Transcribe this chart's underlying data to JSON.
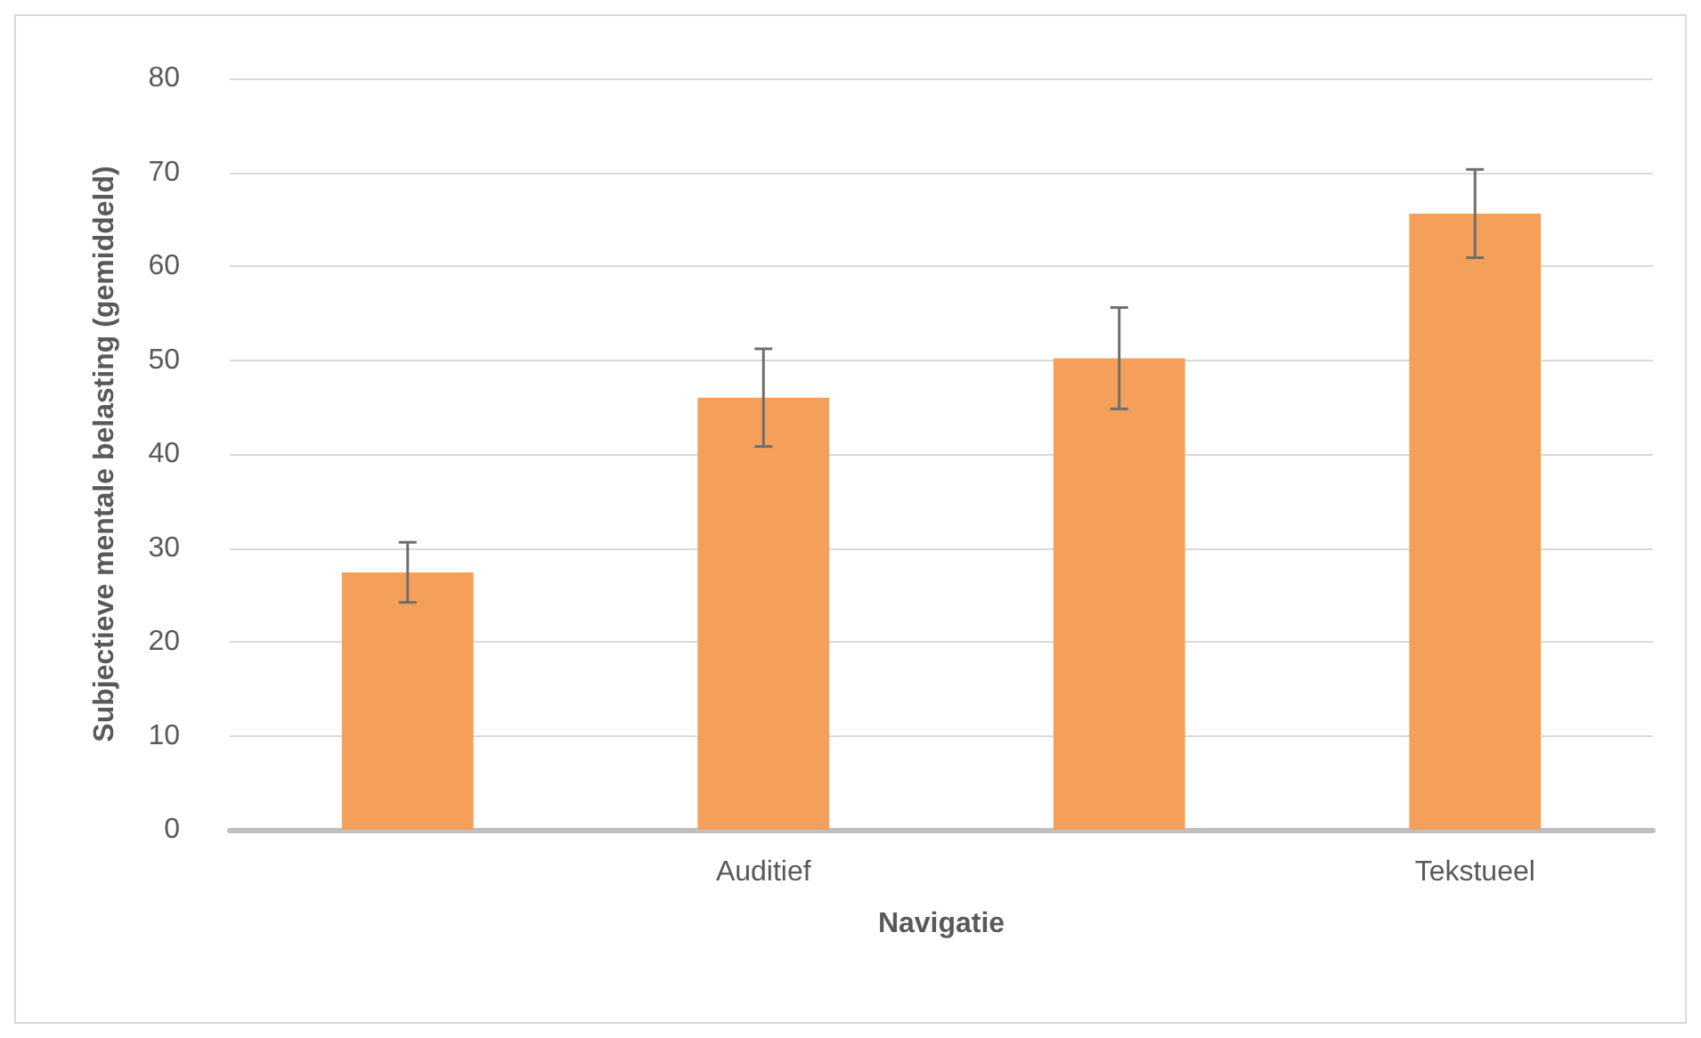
{
  "chart_data": {
    "type": "bar",
    "xlabel": "Navigatie",
    "ylabel": "Subjectieve mentale belasting (gemiddeld)",
    "categories": [
      null,
      "Auditief",
      null,
      "Tekstueel"
    ],
    "values": [
      27.4,
      46,
      50.2,
      65.6
    ],
    "errors": [
      3.2,
      5.2,
      5.4,
      4.7
    ],
    "color": "#f5a05a",
    "ylim": [
      0,
      80
    ],
    "yticks": [
      0,
      10,
      20,
      30,
      40,
      50,
      60,
      70,
      80
    ],
    "grid": "y"
  }
}
